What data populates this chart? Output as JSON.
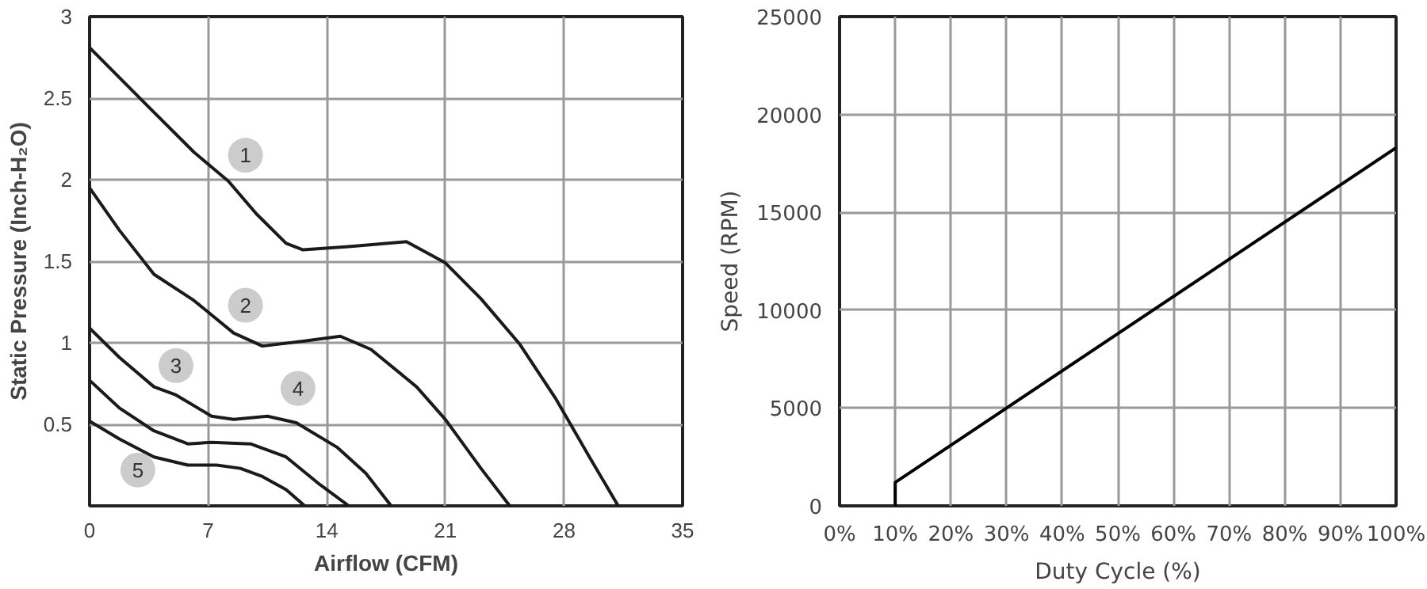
{
  "chart_data": [
    {
      "type": "line",
      "xlabel": "Airflow (CFM)",
      "ylabel": "Static Pressure (Inch-H₂O)",
      "xlim": [
        0,
        35
      ],
      "ylim": [
        0,
        3
      ],
      "xticks": [
        0,
        7,
        14,
        21,
        28,
        35
      ],
      "yticks": [
        0.5,
        1,
        1.5,
        2,
        2.5,
        3
      ],
      "grid": true,
      "marker": "none",
      "line_style": "solid",
      "series": [
        {
          "color": "#1a1a1a",
          "x": [
            0,
            3.45,
            6.15,
            8.2,
            9.85,
            11.6,
            12.6,
            15.3,
            18.7,
            21,
            23.1,
            25.4,
            27.5,
            29.5,
            31.2
          ],
          "values": [
            2.81,
            2.45,
            2.17,
            1.99,
            1.79,
            1.61,
            1.57,
            1.59,
            1.62,
            1.49,
            1.27,
            0.99,
            0.66,
            0.3,
            0
          ]
        },
        {
          "color": "#1a1a1a",
          "x": [
            0,
            1.76,
            3.8,
            6.15,
            8.5,
            10.2,
            12.6,
            14.8,
            16.6,
            19.3,
            21,
            23.1,
            24.8
          ],
          "values": [
            1.95,
            1.69,
            1.42,
            1.26,
            1.06,
            0.98,
            1.01,
            1.04,
            0.96,
            0.73,
            0.53,
            0.23,
            0
          ]
        },
        {
          "color": "#1a1a1a",
          "x": [
            0,
            1.76,
            3.8,
            5.1,
            7.2,
            8.5,
            10.5,
            12.2,
            14.6,
            16.3,
            17.8
          ],
          "values": [
            1.09,
            0.91,
            0.73,
            0.68,
            0.55,
            0.53,
            0.55,
            0.51,
            0.36,
            0.2,
            0
          ]
        },
        {
          "color": "#1a1a1a",
          "x": [
            0,
            1.76,
            3.8,
            5.8,
            7.2,
            9.5,
            11.6,
            13.6,
            15.3
          ],
          "values": [
            0.77,
            0.6,
            0.46,
            0.38,
            0.39,
            0.38,
            0.3,
            0.13,
            0
          ]
        },
        {
          "color": "#1a1a1a",
          "x": [
            0,
            1.76,
            3.8,
            5.8,
            7.5,
            8.9,
            10.2,
            11.6,
            12.7
          ],
          "values": [
            0.52,
            0.41,
            0.3,
            0.25,
            0.25,
            0.23,
            0.18,
            0.1,
            0
          ]
        }
      ],
      "annotations": [
        {
          "text": "1",
          "x": 9.2,
          "y": 2.15
        },
        {
          "text": "2",
          "x": 9.2,
          "y": 1.23
        },
        {
          "text": "3",
          "x": 5.1,
          "y": 0.86
        },
        {
          "text": "4",
          "x": 12.3,
          "y": 0.72
        },
        {
          "text": "5",
          "x": 2.85,
          "y": 0.22
        }
      ]
    },
    {
      "type": "line",
      "xlabel": "Duty Cycle (%)",
      "ylabel": "Speed (RPM)",
      "xlim": [
        0,
        100
      ],
      "ylim": [
        0,
        25000
      ],
      "xticks": [
        {
          "value": 0,
          "label": "0%"
        },
        {
          "value": 10,
          "label": "10%"
        },
        {
          "value": 20,
          "label": "20%"
        },
        {
          "value": 30,
          "label": "30%"
        },
        {
          "value": 40,
          "label": "40%"
        },
        {
          "value": 50,
          "label": "50%"
        },
        {
          "value": 60,
          "label": "60%"
        },
        {
          "value": 70,
          "label": "70%"
        },
        {
          "value": 80,
          "label": "80%"
        },
        {
          "value": 90,
          "label": "90%"
        },
        {
          "value": 100,
          "label": "100%"
        }
      ],
      "yticks": [
        0,
        5000,
        10000,
        15000,
        20000,
        25000
      ],
      "grid": true,
      "marker": "none",
      "line_style": "solid",
      "series": [
        {
          "color": "#000000",
          "x": [
            10,
            10,
            100
          ],
          "values": [
            0,
            1200,
            18300
          ]
        }
      ]
    }
  ]
}
